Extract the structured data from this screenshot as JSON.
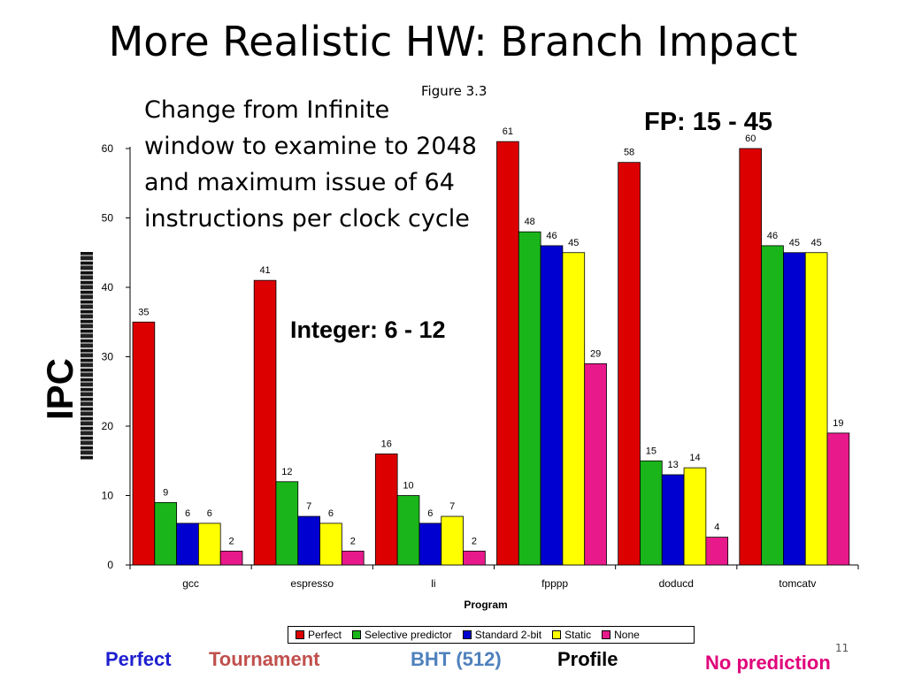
{
  "slide": {
    "title": "More Realistic HW: Branch Impact",
    "figure_ref": "Figure 3.3",
    "description": "Change from Infinite window to examine to 2048 and maximum issue of 64 instructions per clock cycle",
    "fp_note": "FP: 15 - 45",
    "integer_note": "Integer: 6 - 12",
    "ylabel": "IPC",
    "page_number": "11",
    "bottom_labels": [
      {
        "text": "Perfect",
        "color": "#1f1fd0"
      },
      {
        "text": "Tournament",
        "color": "#c0504d"
      },
      {
        "text": "BHT (512)",
        "color": "#4f81bd"
      },
      {
        "text": "Profile",
        "color": "#000000"
      },
      {
        "text": "No prediction",
        "color": "#e0007a"
      }
    ]
  },
  "chart_data": {
    "type": "bar",
    "xlabel": "Program",
    "ylim": [
      0,
      60
    ],
    "yticks": [
      0,
      10,
      20,
      30,
      40,
      50,
      60
    ],
    "categories": [
      "gcc",
      "espresso",
      "li",
      "fpppp",
      "doducd",
      "tomcatv"
    ],
    "legend_position": "bottom",
    "series": [
      {
        "name": "Perfect",
        "color": "#dd0000",
        "values": [
          35,
          41,
          16,
          61,
          58,
          60
        ]
      },
      {
        "name": "Selective predictor",
        "color": "#1ab51a",
        "values": [
          9,
          12,
          10,
          48,
          15,
          46
        ]
      },
      {
        "name": "Standard 2-bit",
        "color": "#0000d0",
        "values": [
          6,
          7,
          6,
          46,
          13,
          45
        ]
      },
      {
        "name": "Static",
        "color": "#ffff00",
        "values": [
          6,
          6,
          7,
          45,
          14,
          45
        ]
      },
      {
        "name": "None",
        "color": "#e8198b",
        "values": [
          2,
          2,
          2,
          29,
          4,
          19
        ]
      }
    ]
  }
}
